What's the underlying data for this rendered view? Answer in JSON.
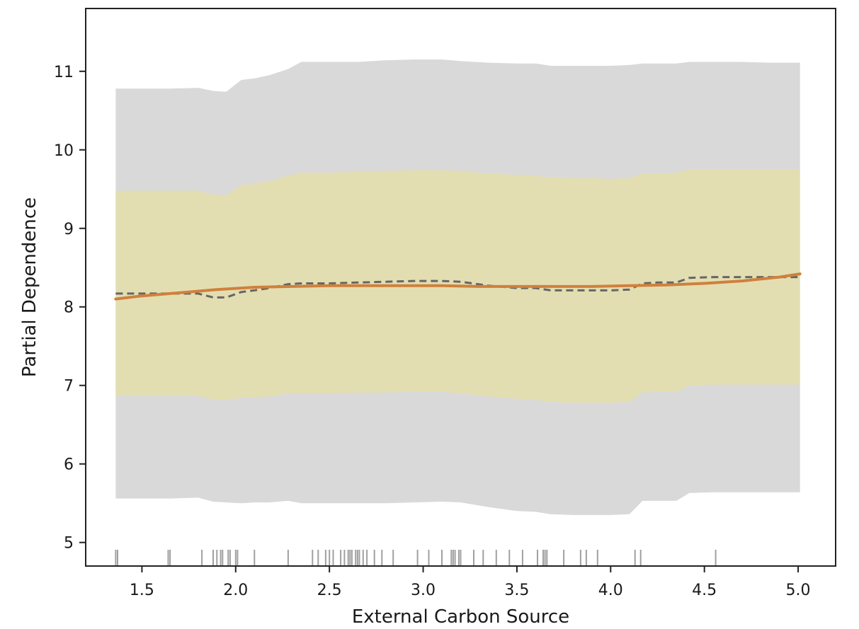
{
  "chart_data": {
    "type": "line",
    "title": "",
    "xlabel": "External Carbon Source",
    "ylabel": "Partial Dependence",
    "xlim": [
      1.2,
      5.2
    ],
    "ylim": [
      4.7,
      11.8
    ],
    "xticks": [
      1.5,
      2.0,
      2.5,
      3.0,
      3.5,
      4.0,
      4.5,
      5.0
    ],
    "xtick_labels": [
      "1.5",
      "2.0",
      "2.5",
      "3.0",
      "3.5",
      "4.0",
      "4.5",
      "5.0"
    ],
    "yticks": [
      5,
      6,
      7,
      8,
      9,
      10,
      11
    ],
    "ytick_labels": [
      "5",
      "6",
      "7",
      "8",
      "9",
      "10",
      "11"
    ],
    "grid": false,
    "legend": "none",
    "outer_band": {
      "color": "#d9d9d9",
      "x": [
        1.36,
        1.55,
        1.65,
        1.8,
        1.88,
        1.95,
        2.03,
        2.1,
        2.18,
        2.28,
        2.35,
        2.5,
        2.65,
        2.8,
        2.95,
        3.1,
        3.2,
        3.35,
        3.5,
        3.6,
        3.68,
        3.8,
        3.9,
        4.0,
        4.1,
        4.17,
        4.25,
        4.35,
        4.42,
        4.55,
        4.7,
        4.85,
        5.01
      ],
      "upper": [
        10.78,
        10.78,
        10.78,
        10.79,
        10.75,
        10.74,
        10.89,
        10.91,
        10.95,
        11.03,
        11.12,
        11.12,
        11.12,
        11.14,
        11.15,
        11.15,
        11.13,
        11.11,
        11.1,
        11.1,
        11.07,
        11.07,
        11.07,
        11.07,
        11.08,
        11.1,
        11.1,
        11.1,
        11.12,
        11.12,
        11.12,
        11.11,
        11.11
      ],
      "lower": [
        5.56,
        5.56,
        5.56,
        5.57,
        5.52,
        5.51,
        5.5,
        5.51,
        5.51,
        5.53,
        5.5,
        5.5,
        5.5,
        5.5,
        5.51,
        5.52,
        5.51,
        5.45,
        5.4,
        5.39,
        5.36,
        5.35,
        5.35,
        5.35,
        5.36,
        5.53,
        5.53,
        5.53,
        5.63,
        5.64,
        5.64,
        5.64,
        5.64
      ]
    },
    "inner_band": {
      "color": "#e3deb1",
      "x": [
        1.36,
        1.55,
        1.65,
        1.8,
        1.88,
        1.95,
        2.03,
        2.1,
        2.18,
        2.28,
        2.35,
        2.5,
        2.65,
        2.8,
        2.95,
        3.1,
        3.2,
        3.35,
        3.5,
        3.6,
        3.68,
        3.8,
        3.9,
        4.0,
        4.1,
        4.17,
        4.25,
        4.35,
        4.42,
        4.55,
        4.7,
        4.85,
        5.01
      ],
      "upper": [
        9.48,
        9.48,
        9.48,
        9.48,
        9.43,
        9.42,
        9.55,
        9.57,
        9.6,
        9.67,
        9.71,
        9.71,
        9.72,
        9.73,
        9.74,
        9.74,
        9.73,
        9.7,
        9.68,
        9.67,
        9.65,
        9.64,
        9.64,
        9.63,
        9.64,
        9.7,
        9.7,
        9.71,
        9.75,
        9.75,
        9.75,
        9.75,
        9.75
      ],
      "lower": [
        6.87,
        6.87,
        6.87,
        6.87,
        6.82,
        6.82,
        6.84,
        6.85,
        6.86,
        6.9,
        6.9,
        6.9,
        6.91,
        6.91,
        6.92,
        6.92,
        6.9,
        6.86,
        6.83,
        6.82,
        6.79,
        6.78,
        6.78,
        6.78,
        6.79,
        6.91,
        6.92,
        6.92,
        7.0,
        7.01,
        7.01,
        7.01,
        7.01
      ]
    },
    "series": [
      {
        "style": "dashed",
        "color": "#666666",
        "x": [
          1.36,
          1.55,
          1.65,
          1.8,
          1.88,
          1.95,
          2.03,
          2.1,
          2.18,
          2.28,
          2.35,
          2.5,
          2.65,
          2.8,
          2.95,
          3.1,
          3.2,
          3.35,
          3.5,
          3.6,
          3.68,
          3.8,
          3.9,
          4.0,
          4.1,
          4.17,
          4.25,
          4.35,
          4.42,
          4.55,
          4.7,
          4.85,
          5.01
        ],
        "y": [
          8.17,
          8.17,
          8.17,
          8.17,
          8.12,
          8.12,
          8.19,
          8.21,
          8.24,
          8.29,
          8.3,
          8.3,
          8.31,
          8.32,
          8.33,
          8.33,
          8.32,
          8.27,
          8.24,
          8.24,
          8.21,
          8.21,
          8.21,
          8.21,
          8.22,
          8.3,
          8.31,
          8.31,
          8.37,
          8.38,
          8.38,
          8.38,
          8.38
        ]
      },
      {
        "style": "solid",
        "color": "#d0803c",
        "x": [
          1.36,
          1.5,
          1.7,
          1.9,
          2.1,
          2.3,
          2.5,
          2.7,
          2.9,
          3.1,
          3.3,
          3.5,
          3.7,
          3.9,
          4.1,
          4.3,
          4.5,
          4.7,
          4.9,
          5.01
        ],
        "y": [
          8.1,
          8.14,
          8.18,
          8.22,
          8.25,
          8.26,
          8.27,
          8.27,
          8.27,
          8.27,
          8.26,
          8.26,
          8.26,
          8.26,
          8.27,
          8.28,
          8.3,
          8.33,
          8.38,
          8.42
        ]
      }
    ],
    "rug": {
      "color": "#888888",
      "x": [
        1.36,
        1.37,
        1.64,
        1.65,
        1.82,
        1.88,
        1.9,
        1.92,
        1.93,
        1.96,
        1.97,
        2.0,
        2.01,
        2.1,
        2.28,
        2.41,
        2.44,
        2.48,
        2.5,
        2.52,
        2.56,
        2.58,
        2.6,
        2.61,
        2.62,
        2.64,
        2.65,
        2.66,
        2.68,
        2.7,
        2.74,
        2.78,
        2.84,
        2.97,
        3.03,
        3.1,
        3.15,
        3.16,
        3.17,
        3.19,
        3.2,
        3.27,
        3.32,
        3.39,
        3.46,
        3.53,
        3.61,
        3.64,
        3.65,
        3.66,
        3.75,
        3.84,
        3.87,
        3.93,
        4.13,
        4.16,
        4.56
      ]
    }
  }
}
